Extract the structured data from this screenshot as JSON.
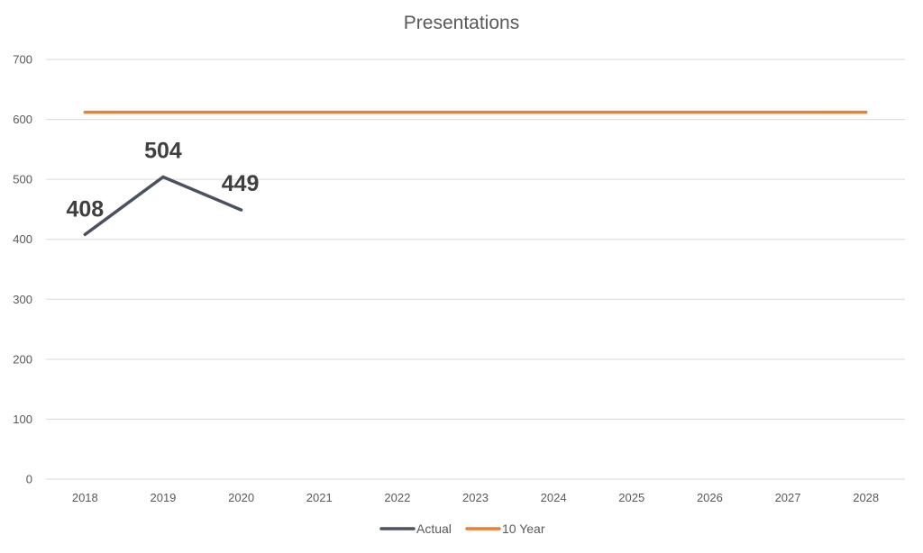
{
  "chart_data": {
    "type": "line",
    "title": "Presentations",
    "xlabel": "",
    "ylabel": "",
    "categories": [
      "2018",
      "2019",
      "2020",
      "2021",
      "2022",
      "2023",
      "2024",
      "2025",
      "2026",
      "2027",
      "2028"
    ],
    "yticks": [
      "0",
      "100",
      "200",
      "300",
      "400",
      "500",
      "600",
      "700"
    ],
    "ylim": [
      0,
      700
    ],
    "grid": true,
    "legend_position": "bottom",
    "series": [
      {
        "name": "Actual",
        "color": "#4a5160",
        "values": [
          408,
          504,
          449,
          null,
          null,
          null,
          null,
          null,
          null,
          null,
          null
        ],
        "data_labels": [
          "408",
          "504",
          "449"
        ]
      },
      {
        "name": "10 Year",
        "color": "#ed7d31",
        "values": [
          612,
          612,
          612,
          612,
          612,
          612,
          612,
          612,
          612,
          612,
          612
        ]
      }
    ]
  }
}
